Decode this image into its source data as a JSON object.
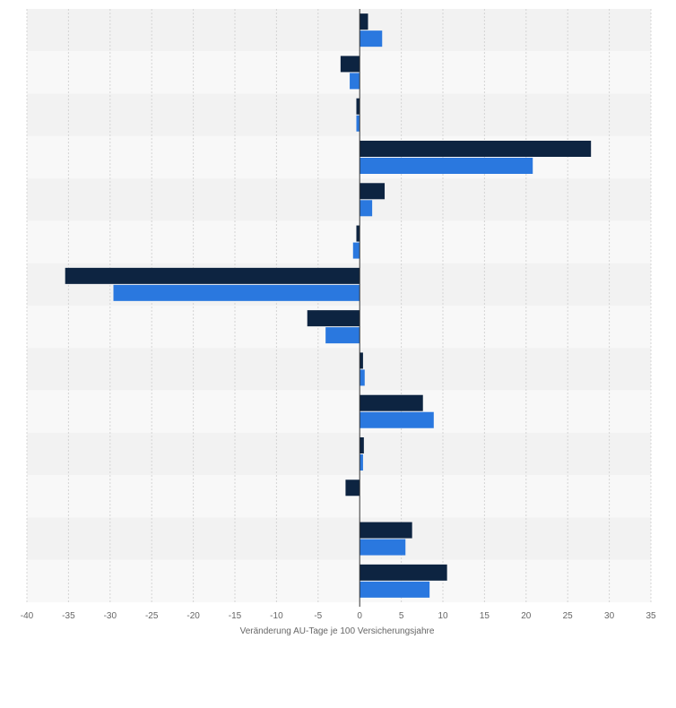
{
  "chart_data": {
    "type": "bar",
    "orientation": "horizontal",
    "xlabel": "Veränderung AU-Tage je 100 Versicherungsjahre",
    "xlim": [
      -40,
      35
    ],
    "x_ticks": [
      -40,
      -35,
      -30,
      -25,
      -20,
      -15,
      -10,
      -5,
      0,
      5,
      10,
      15,
      20,
      25,
      30,
      35
    ],
    "x_tick_labels": [
      "-40",
      "-35",
      "-30",
      "-25",
      "-20",
      "-15",
      "-10",
      "-5",
      "0",
      "5",
      "10",
      "15",
      "20",
      "25",
      "30",
      "35"
    ],
    "grid": true,
    "legend": "none",
    "category_count": 14,
    "series": [
      {
        "color": "#0d2441",
        "values": [
          1.0,
          -2.3,
          -0.4,
          27.8,
          3.0,
          -0.4,
          -35.4,
          -6.3,
          0.4,
          7.6,
          0.5,
          -1.7,
          6.3,
          10.5
        ]
      },
      {
        "color": "#2a78df",
        "values": [
          2.7,
          -1.2,
          -0.4,
          20.8,
          1.5,
          -0.8,
          -29.6,
          -4.1,
          0.6,
          8.9,
          0.4,
          0.0,
          5.5,
          8.4
        ]
      }
    ]
  },
  "colors": {
    "band_dark": "#f2f2f2",
    "band_light": "#f8f8f8",
    "grid": "#d4d4d4",
    "axis": "#333333",
    "text": "#666666"
  }
}
